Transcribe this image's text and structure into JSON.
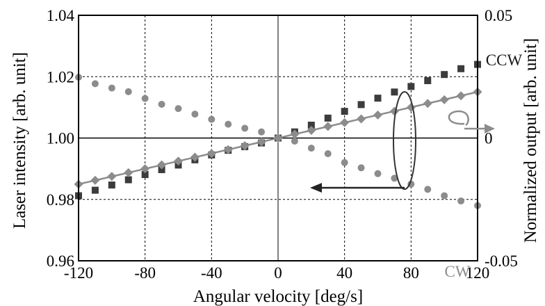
{
  "chart_data": {
    "type": "scatter",
    "title": "",
    "xlabel": "Angular velocity [deg/s]",
    "ylabel_left": "Laser intensity [arb. unit]",
    "ylabel_right": "Normalized output [arb. unit]",
    "xlim": [
      -120,
      120
    ],
    "ylim_left": [
      0.96,
      1.04
    ],
    "ylim_right": [
      -0.05,
      0.05
    ],
    "x_ticks": [
      "-120",
      "-80",
      "-40",
      "0",
      "40",
      "80",
      "120"
    ],
    "y_ticks_left": [
      "0.96",
      "0.98",
      "1.00",
      "1.02",
      "1.04"
    ],
    "y_ticks_right": [
      "-0.05",
      "0",
      "0.05"
    ],
    "grid": true,
    "colors": {
      "ccw": "#3c3c3c",
      "cw": "#8c8c8c",
      "output": "#8c8c8c",
      "line": "#8c8c8c"
    },
    "series": [
      {
        "name": "CCW",
        "axis": "left",
        "marker": "square",
        "x": [
          -120,
          -110,
          -100,
          -90,
          -80,
          -70,
          -60,
          -50,
          -40,
          -30,
          -20,
          -10,
          0,
          10,
          20,
          30,
          40,
          50,
          60,
          70,
          80,
          90,
          100,
          110,
          120
        ],
        "y": [
          0.9812,
          0.983,
          0.9847,
          0.9864,
          0.9881,
          0.9897,
          0.9912,
          0.9929,
          0.9945,
          0.996,
          0.9972,
          0.9984,
          1.0,
          1.002,
          1.0042,
          1.0065,
          1.0087,
          1.0109,
          1.013,
          1.015,
          1.0168,
          1.0187,
          1.0207,
          1.0226,
          1.024
        ]
      },
      {
        "name": "CW",
        "axis": "left",
        "marker": "circle",
        "x": [
          -120,
          -110,
          -100,
          -90,
          -80,
          -70,
          -60,
          -50,
          -40,
          -30,
          -20,
          -10,
          0,
          10,
          20,
          30,
          40,
          50,
          60,
          70,
          80,
          90,
          100,
          110,
          120
        ],
        "y": [
          1.0198,
          1.0177,
          1.0163,
          1.0151,
          1.0129,
          1.011,
          1.0096,
          1.0078,
          1.0061,
          1.0045,
          1.0032,
          1.002,
          1.0,
          0.999,
          0.9967,
          0.9949,
          0.992,
          0.9903,
          0.9884,
          0.9869,
          0.985,
          0.9833,
          0.9812,
          0.9795,
          0.978
        ]
      },
      {
        "name": "",
        "axis": "right",
        "marker": "diamond",
        "fit_line": true,
        "x": [
          -120,
          -110,
          -100,
          -90,
          -80,
          -70,
          -60,
          -50,
          -40,
          -30,
          -20,
          -10,
          0,
          10,
          20,
          30,
          40,
          50,
          60,
          70,
          80,
          90,
          100,
          110,
          120
        ],
        "y": [
          -0.0188,
          -0.0172,
          -0.0156,
          -0.0141,
          -0.0125,
          -0.0109,
          -0.0094,
          -0.0078,
          -0.0063,
          -0.0047,
          -0.0031,
          -0.0016,
          0.0,
          0.0016,
          0.0031,
          0.0047,
          0.0063,
          0.0078,
          0.0094,
          0.0109,
          0.0125,
          0.0141,
          0.0156,
          0.0172,
          0.0188
        ]
      }
    ],
    "labels": {
      "ccw": "CCW",
      "cw": "CW"
    }
  }
}
